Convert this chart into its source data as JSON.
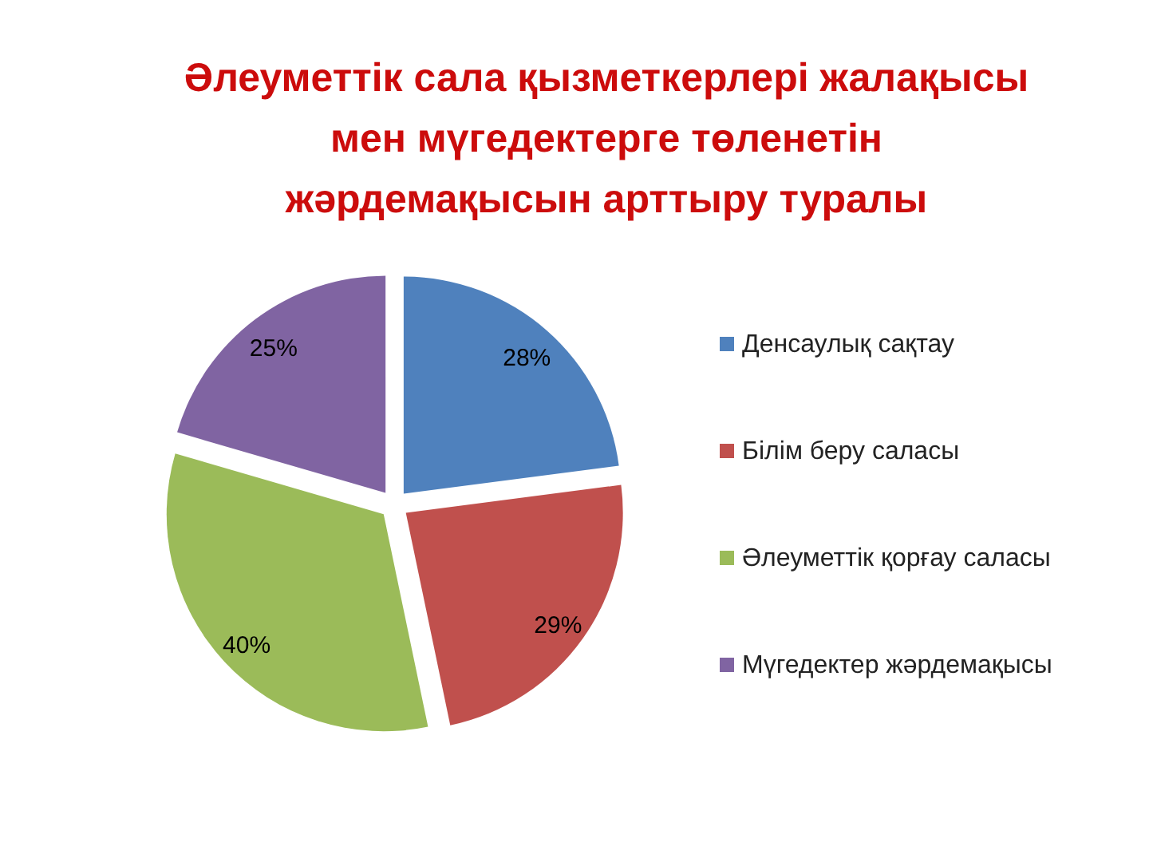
{
  "chart_data": {
    "type": "pie",
    "title": "Әлеуметтік сала қызметкерлері жалақысы\nмен мүгедектерге төленетін\nжәрдемақысын арттыру туралы",
    "categories": [
      "Денсаулық сақтау",
      "Білім беру саласы",
      "Әлеуметтік қорғау саласы",
      "Мүгедектер жәрдемақысы"
    ],
    "values": [
      28,
      29,
      40,
      25
    ],
    "colors": [
      "#4f81bd",
      "#c0504d",
      "#9bbb59",
      "#8064a2"
    ],
    "value_labels": [
      "28%",
      "29%",
      "40%",
      "25%"
    ],
    "legend": "right"
  }
}
